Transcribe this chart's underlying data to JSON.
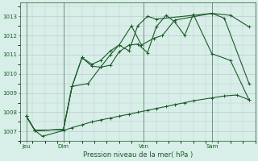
{
  "bg_color": "#d8eee8",
  "grid_color": "#c0c8d0",
  "line_color": "#1a5c28",
  "xlabel": "Pression niveau de la mer( hPa )",
  "ylim": [
    1006.5,
    1013.7
  ],
  "yticks": [
    1007,
    1008,
    1009,
    1010,
    1011,
    1012,
    1013
  ],
  "figsize": [
    3.2,
    2.0
  ],
  "dpi": 100,
  "xtick_labels": [
    "Jeu",
    "Dim",
    "Ven",
    "Sam"
  ],
  "xtick_positions": [
    0.5,
    3.5,
    10.0,
    15.5
  ],
  "vline_positions": [
    0.5,
    3.5,
    10.0,
    15.5
  ],
  "xlim": [
    0,
    19
  ],
  "series1_x": [
    0.5,
    1.2,
    1.8,
    3.5,
    4.2,
    5.0,
    5.8,
    6.5,
    7.3,
    8.0,
    8.8,
    9.5,
    10.3,
    11.0,
    11.8,
    12.5,
    13.3,
    14.0,
    15.5,
    16.5,
    17.5,
    18.5
  ],
  "series1_y": [
    1007.8,
    1007.05,
    1006.75,
    1007.05,
    1007.2,
    1007.35,
    1007.5,
    1007.6,
    1007.7,
    1007.8,
    1007.9,
    1008.0,
    1008.1,
    1008.2,
    1008.3,
    1008.4,
    1008.5,
    1008.6,
    1008.75,
    1008.85,
    1008.9,
    1008.65
  ],
  "series2_x": [
    0.5,
    1.2,
    3.5,
    4.2,
    5.0,
    5.8,
    6.5,
    7.3,
    8.0,
    8.8,
    9.5,
    10.3,
    11.0,
    11.8,
    12.5,
    13.3,
    14.0,
    15.5,
    17.0,
    18.5
  ],
  "series2_y": [
    1007.8,
    1007.05,
    1007.1,
    1009.35,
    1010.85,
    1010.4,
    1010.35,
    1010.45,
    1011.15,
    1011.5,
    1011.55,
    1011.1,
    1012.45,
    1013.05,
    1012.7,
    1012.0,
    1013.1,
    1011.05,
    1010.7,
    1008.65
  ],
  "series3_x": [
    0.5,
    1.2,
    3.5,
    4.2,
    5.0,
    5.8,
    6.5,
    7.3,
    8.0,
    8.8,
    9.5,
    10.3,
    11.0,
    15.5,
    16.5,
    18.5
  ],
  "series3_y": [
    1007.8,
    1007.05,
    1007.1,
    1009.35,
    1010.85,
    1010.5,
    1010.7,
    1011.2,
    1011.5,
    1011.2,
    1012.5,
    1013.0,
    1012.85,
    1013.15,
    1012.9,
    1009.5
  ],
  "series4_x": [
    0.5,
    1.2,
    3.5,
    4.2,
    5.5,
    6.5,
    7.3,
    8.0,
    9.0,
    9.8,
    10.8,
    11.5,
    12.5,
    15.5,
    17.0,
    18.5
  ],
  "series4_y": [
    1007.8,
    1007.05,
    1007.1,
    1009.35,
    1009.5,
    1010.35,
    1011.0,
    1011.5,
    1012.5,
    1011.5,
    1011.85,
    1012.0,
    1012.8,
    1013.15,
    1013.05,
    1012.45
  ]
}
